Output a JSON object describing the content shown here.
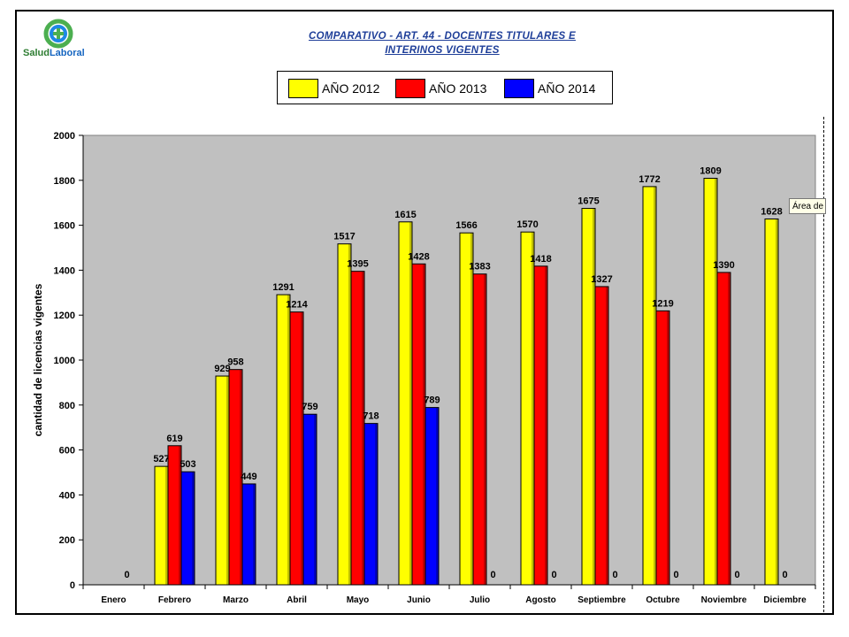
{
  "logo": {
    "text_a": "Salud",
    "text_b": "Laboral"
  },
  "title_line1": "COMPARATIVO - ART. 44 - DOCENTES TITULARES E",
  "title_line2": "INTERINOS VIGENTES",
  "tooltip": "Área de",
  "colors": {
    "y2012": "#ffff00",
    "y2013": "#ff0000",
    "y2014": "#0000ff",
    "plot_bg": "#c0c0c0"
  },
  "chart_data": {
    "type": "bar",
    "title": "COMPARATIVO - ART. 44 - DOCENTES TITULARES E INTERINOS VIGENTES",
    "ylabel": "cantidad de licencias vigentes",
    "xlabel": "",
    "ylim": [
      0,
      2000
    ],
    "yticks": [
      0,
      200,
      400,
      600,
      800,
      1000,
      1200,
      1400,
      1600,
      1800,
      2000
    ],
    "legend_position": "top",
    "grid": false,
    "categories": [
      "Enero",
      "Febrero",
      "Marzo",
      "Abril",
      "Mayo",
      "Junio",
      "Julio",
      "Agosto",
      "Septiembre",
      "Octubre",
      "Noviembre",
      "Diciembre"
    ],
    "series": [
      {
        "name": "AÑO 2012",
        "values": [
          null,
          527,
          929,
          1291,
          1517,
          1615,
          1566,
          1570,
          1675,
          1772,
          1809,
          1628
        ]
      },
      {
        "name": "AÑO 2013",
        "values": [
          null,
          619,
          958,
          1214,
          1395,
          1428,
          1383,
          1418,
          1327,
          1219,
          1390,
          0
        ]
      },
      {
        "name": "AÑO 2014",
        "values": [
          0,
          503,
          449,
          759,
          718,
          789,
          0,
          0,
          0,
          0,
          0,
          null
        ]
      }
    ],
    "data_labels": [
      [
        null,
        "527",
        "929",
        "1291",
        "1517",
        "1615",
        "1566",
        "1570",
        "1675",
        "1772",
        "1809",
        "1628"
      ],
      [
        null,
        "619",
        "958",
        "1214",
        "1395",
        "1428",
        "1383",
        "1418",
        "1327",
        "1219",
        "1390",
        "0"
      ],
      [
        "0",
        "503",
        "449",
        "759",
        "718",
        "789",
        "0",
        "0",
        "0",
        "0",
        "0",
        null
      ]
    ]
  }
}
